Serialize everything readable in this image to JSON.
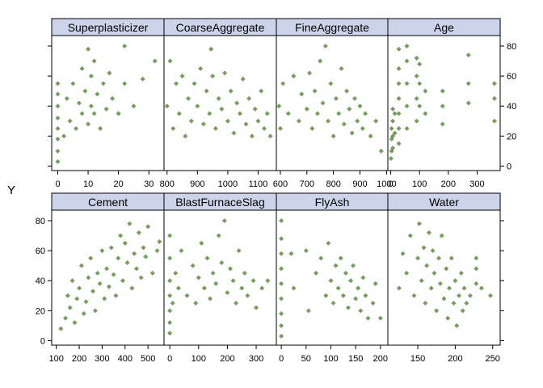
{
  "chart_data": {
    "type": "scatter",
    "layout": "lattice 4 columns x 2 rows, shared y axis",
    "ylabel": "Y",
    "xlabel": "",
    "title": "",
    "ylim": [
      -3,
      87
    ],
    "y_ticks": [
      0,
      20,
      40,
      60,
      80
    ],
    "grid": false,
    "legend": "none",
    "point_color": "#4a7a2b",
    "strip_color": "#ccd4ea",
    "panels": [
      {
        "name": "Cement",
        "xlim": [
          80,
          570
        ],
        "x_ticks": [
          100,
          200,
          300,
          400,
          500
        ],
        "points": [
          [
            120,
            8
          ],
          [
            140,
            15
          ],
          [
            150,
            30
          ],
          [
            160,
            22
          ],
          [
            170,
            40
          ],
          [
            180,
            12
          ],
          [
            190,
            28
          ],
          [
            200,
            35
          ],
          [
            210,
            50
          ],
          [
            220,
            18
          ],
          [
            230,
            26
          ],
          [
            240,
            42
          ],
          [
            250,
            55
          ],
          [
            260,
            33
          ],
          [
            270,
            20
          ],
          [
            280,
            45
          ],
          [
            290,
            38
          ],
          [
            300,
            60
          ],
          [
            310,
            28
          ],
          [
            320,
            48
          ],
          [
            330,
            36
          ],
          [
            340,
            62
          ],
          [
            350,
            44
          ],
          [
            360,
            30
          ],
          [
            370,
            55
          ],
          [
            380,
            70
          ],
          [
            390,
            40
          ],
          [
            400,
            65
          ],
          [
            410,
            52
          ],
          [
            420,
            78
          ],
          [
            430,
            35
          ],
          [
            440,
            58
          ],
          [
            450,
            48
          ],
          [
            460,
            72
          ],
          [
            470,
            42
          ],
          [
            480,
            62
          ],
          [
            490,
            56
          ],
          [
            500,
            76
          ],
          [
            520,
            45
          ],
          [
            540,
            60
          ],
          [
            550,
            66
          ]
        ]
      },
      {
        "name": "BlastFurnaceSlag",
        "xlim": [
          -20,
          370
        ],
        "x_ticks": [
          0,
          100,
          200,
          300
        ],
        "points": [
          [
            0,
            5
          ],
          [
            0,
            12
          ],
          [
            0,
            20
          ],
          [
            0,
            30
          ],
          [
            0,
            40
          ],
          [
            0,
            55
          ],
          [
            0,
            70
          ],
          [
            10,
            25
          ],
          [
            20,
            45
          ],
          [
            30,
            35
          ],
          [
            40,
            60
          ],
          [
            60,
            30
          ],
          [
            80,
            50
          ],
          [
            90,
            25
          ],
          [
            100,
            42
          ],
          [
            110,
            65
          ],
          [
            120,
            35
          ],
          [
            130,
            55
          ],
          [
            140,
            28
          ],
          [
            150,
            45
          ],
          [
            160,
            38
          ],
          [
            170,
            70
          ],
          [
            180,
            52
          ],
          [
            190,
            80
          ],
          [
            200,
            32
          ],
          [
            210,
            48
          ],
          [
            220,
            40
          ],
          [
            230,
            25
          ],
          [
            240,
            60
          ],
          [
            250,
            35
          ],
          [
            260,
            45
          ],
          [
            270,
            30
          ],
          [
            290,
            40
          ],
          [
            300,
            22
          ],
          [
            320,
            35
          ],
          [
            340,
            40
          ]
        ]
      },
      {
        "name": "FlyAsh",
        "xlim": [
          -10,
          215
        ],
        "x_ticks": [
          0,
          50,
          100,
          150,
          200
        ],
        "points": [
          [
            0,
            3
          ],
          [
            0,
            10
          ],
          [
            0,
            18
          ],
          [
            0,
            28
          ],
          [
            0,
            38
          ],
          [
            0,
            48
          ],
          [
            0,
            58
          ],
          [
            0,
            68
          ],
          [
            0,
            80
          ],
          [
            20,
            58
          ],
          [
            25,
            35
          ],
          [
            50,
            60
          ],
          [
            55,
            20
          ],
          [
            70,
            45
          ],
          [
            80,
            55
          ],
          [
            90,
            30
          ],
          [
            95,
            65
          ],
          [
            100,
            40
          ],
          [
            105,
            25
          ],
          [
            110,
            50
          ],
          [
            115,
            35
          ],
          [
            120,
            55
          ],
          [
            125,
            30
          ],
          [
            130,
            45
          ],
          [
            135,
            22
          ],
          [
            140,
            40
          ],
          [
            145,
            50
          ],
          [
            150,
            28
          ],
          [
            155,
            35
          ],
          [
            160,
            20
          ],
          [
            165,
            42
          ],
          [
            170,
            30
          ],
          [
            175,
            15
          ],
          [
            185,
            25
          ],
          [
            190,
            38
          ],
          [
            200,
            15
          ]
        ]
      },
      {
        "name": "Water",
        "xlim": [
          110,
          260
        ],
        "x_ticks": [
          150,
          200,
          250
        ],
        "points": [
          [
            125,
            35
          ],
          [
            130,
            58
          ],
          [
            135,
            45
          ],
          [
            140,
            70
          ],
          [
            145,
            30
          ],
          [
            150,
            55
          ],
          [
            152,
            78
          ],
          [
            155,
            40
          ],
          [
            158,
            62
          ],
          [
            160,
            25
          ],
          [
            162,
            50
          ],
          [
            165,
            72
          ],
          [
            168,
            35
          ],
          [
            170,
            60
          ],
          [
            172,
            45
          ],
          [
            175,
            20
          ],
          [
            178,
            55
          ],
          [
            180,
            38
          ],
          [
            182,
            70
          ],
          [
            185,
            28
          ],
          [
            188,
            48
          ],
          [
            190,
            15
          ],
          [
            192,
            35
          ],
          [
            195,
            55
          ],
          [
            198,
            25
          ],
          [
            200,
            40
          ],
          [
            202,
            10
          ],
          [
            205,
            30
          ],
          [
            208,
            45
          ],
          [
            210,
            20
          ],
          [
            212,
            35
          ],
          [
            215,
            25
          ],
          [
            220,
            30
          ],
          [
            228,
            38
          ],
          [
            228,
            48
          ],
          [
            228,
            55
          ],
          [
            235,
            35
          ],
          [
            247,
            30
          ]
        ]
      },
      {
        "name": "Superplasticizer",
        "xlim": [
          -2,
          35
        ],
        "x_ticks": [
          0,
          10,
          20,
          30
        ],
        "points": [
          [
            0,
            3
          ],
          [
            0,
            10
          ],
          [
            0,
            18
          ],
          [
            0,
            25
          ],
          [
            0,
            32
          ],
          [
            0,
            40
          ],
          [
            0,
            48
          ],
          [
            0,
            55
          ],
          [
            2,
            20
          ],
          [
            3,
            45
          ],
          [
            4,
            30
          ],
          [
            5,
            55
          ],
          [
            6,
            25
          ],
          [
            7,
            42
          ],
          [
            8,
            35
          ],
          [
            8,
            65
          ],
          [
            9,
            50
          ],
          [
            10,
            28
          ],
          [
            10,
            78
          ],
          [
            11,
            40
          ],
          [
            11,
            60
          ],
          [
            12,
            35
          ],
          [
            12,
            70
          ],
          [
            13,
            48
          ],
          [
            14,
            25
          ],
          [
            15,
            55
          ],
          [
            16,
            38
          ],
          [
            17,
            62
          ],
          [
            18,
            45
          ],
          [
            20,
            35
          ],
          [
            22,
            80
          ],
          [
            22,
            55
          ],
          [
            25,
            40
          ],
          [
            28,
            58
          ],
          [
            32,
            70
          ]
        ]
      },
      {
        "name": "CoarseAggregate",
        "xlim": [
          790,
          1160
        ],
        "x_ticks": [
          800,
          900,
          1000,
          1100
        ],
        "points": [
          [
            800,
            40
          ],
          [
            810,
            70
          ],
          [
            820,
            25
          ],
          [
            830,
            55
          ],
          [
            840,
            35
          ],
          [
            850,
            60
          ],
          [
            860,
            20
          ],
          [
            870,
            45
          ],
          [
            880,
            30
          ],
          [
            890,
            55
          ],
          [
            900,
            40
          ],
          [
            910,
            65
          ],
          [
            920,
            28
          ],
          [
            930,
            50
          ],
          [
            940,
            35
          ],
          [
            945,
            78
          ],
          [
            950,
            60
          ],
          [
            960,
            25
          ],
          [
            970,
            45
          ],
          [
            980,
            38
          ],
          [
            990,
            62
          ],
          [
            1000,
            30
          ],
          [
            1010,
            50
          ],
          [
            1020,
            22
          ],
          [
            1030,
            42
          ],
          [
            1040,
            35
          ],
          [
            1050,
            58
          ],
          [
            1060,
            28
          ],
          [
            1070,
            45
          ],
          [
            1080,
            20
          ],
          [
            1090,
            38
          ],
          [
            1100,
            30
          ],
          [
            1110,
            50
          ],
          [
            1120,
            25
          ],
          [
            1130,
            35
          ],
          [
            1140,
            20
          ]
        ]
      },
      {
        "name": "FineAggregate",
        "xlim": [
          585,
          1005
        ],
        "x_ticks": [
          600,
          700,
          800,
          900,
          1000
        ],
        "points": [
          [
            595,
            40
          ],
          [
            600,
            25
          ],
          [
            610,
            55
          ],
          [
            630,
            35
          ],
          [
            650,
            60
          ],
          [
            670,
            30
          ],
          [
            680,
            48
          ],
          [
            700,
            38
          ],
          [
            710,
            62
          ],
          [
            720,
            25
          ],
          [
            730,
            50
          ],
          [
            740,
            35
          ],
          [
            750,
            70
          ],
          [
            760,
            42
          ],
          [
            770,
            80
          ],
          [
            780,
            30
          ],
          [
            790,
            55
          ],
          [
            800,
            20
          ],
          [
            810,
            45
          ],
          [
            820,
            35
          ],
          [
            830,
            65
          ],
          [
            840,
            28
          ],
          [
            850,
            50
          ],
          [
            860,
            38
          ],
          [
            870,
            22
          ],
          [
            880,
            45
          ],
          [
            890,
            30
          ],
          [
            900,
            40
          ],
          [
            910,
            25
          ],
          [
            920,
            35
          ],
          [
            940,
            20
          ],
          [
            960,
            30
          ],
          [
            980,
            10
          ]
        ]
      },
      {
        "name": "Age",
        "xlim": [
          -10,
          380
        ],
        "x_ticks": [
          0,
          100,
          200,
          300
        ],
        "points": [
          [
            1,
            5
          ],
          [
            3,
            10
          ],
          [
            3,
            18
          ],
          [
            3,
            25
          ],
          [
            7,
            12
          ],
          [
            7,
            20
          ],
          [
            7,
            30
          ],
          [
            7,
            38
          ],
          [
            14,
            22
          ],
          [
            14,
            35
          ],
          [
            28,
            15
          ],
          [
            28,
            25
          ],
          [
            28,
            35
          ],
          [
            28,
            45
          ],
          [
            28,
            55
          ],
          [
            28,
            65
          ],
          [
            28,
            78
          ],
          [
            56,
            25
          ],
          [
            56,
            40
          ],
          [
            56,
            55
          ],
          [
            56,
            70
          ],
          [
            56,
            80
          ],
          [
            90,
            30
          ],
          [
            90,
            45
          ],
          [
            90,
            60
          ],
          [
            90,
            72
          ],
          [
            100,
            40
          ],
          [
            100,
            55
          ],
          [
            100,
            68
          ],
          [
            120,
            35
          ],
          [
            120,
            50
          ],
          [
            180,
            28
          ],
          [
            180,
            40
          ],
          [
            180,
            50
          ],
          [
            270,
            42
          ],
          [
            270,
            55
          ],
          [
            270,
            74
          ],
          [
            360,
            30
          ],
          [
            360,
            45
          ],
          [
            360,
            55
          ]
        ]
      }
    ]
  }
}
